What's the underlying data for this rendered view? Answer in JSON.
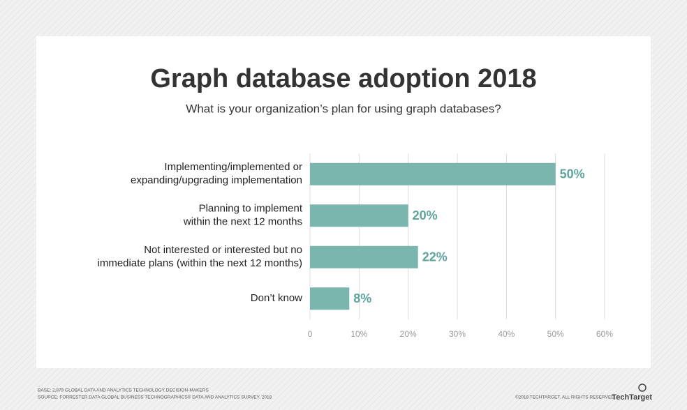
{
  "chart_data": {
    "type": "hbar",
    "title": "Graph database adoption 2018",
    "subtitle": "What is your organization’s plan for using graph databases?",
    "categories": [
      [
        "Implementing/implemented or",
        "expanding/upgrading implementation"
      ],
      [
        "Planning to implement",
        "within the next 12 months"
      ],
      [
        "Not interested or interested but no",
        "immediate plans (within the next 12 months)"
      ],
      [
        "Don’t know"
      ]
    ],
    "values": [
      50,
      20,
      22,
      8
    ],
    "value_labels": [
      "50%",
      "20%",
      "22%",
      "8%"
    ],
    "color": "#7ab6ae",
    "label_color": "#5ea69d",
    "xlim": [
      0,
      60
    ],
    "xticks": [
      0,
      {
        "value": 10,
        "label": "10%"
      },
      {
        "value": 20,
        "label": "20%"
      },
      {
        "value": 30,
        "label": "30%"
      },
      {
        "value": 40,
        "label": "40%"
      },
      {
        "value": 50,
        "label": "50%"
      },
      {
        "value": 60,
        "label": "60%"
      }
    ],
    "grid": true
  },
  "footer": {
    "base": "BASE: 2,879 GLOBAL DATA AND ANALYTICS TECHNOLOGY DECISION-MAKERS",
    "source": "SOURCE: FORRESTER DATA GLOBAL BUSINESS TECHNOGRAPHICS® DATA AND ANALYTICS SURVEY, 2018",
    "copyright": "©2018 TECHTARGET. ALL RIGHTS RESERVED",
    "brand": "TechTarget"
  }
}
